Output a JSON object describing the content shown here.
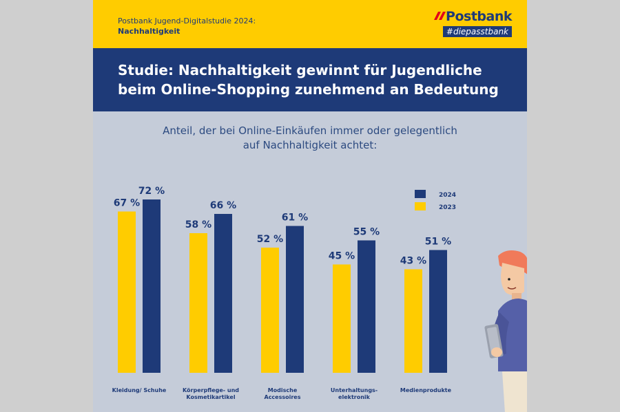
{
  "header": {
    "study_title": "Postbank Jugend-Digitalstudie 2024:",
    "study_topic": "Nachhaltigkeit",
    "brand_name": "Postbank",
    "tagline": "#diepasstbank"
  },
  "headline": {
    "line1": "Studie: Nachhaltigkeit gewinnt für Jugendliche",
    "line2": "beim Online-Shopping zunehmend an Bedeutung"
  },
  "subtitle": {
    "line1": "Anteil, der bei Online-Einkäufen immer oder gelegentlich",
    "line2": "auf Nachhaltigkeit achtet:"
  },
  "colors": {
    "brand_yellow": "#ffcc00",
    "brand_navy": "#1e3a78",
    "background": "#c5ccd9"
  },
  "chart_data": {
    "type": "bar",
    "categories": [
      [
        "Kleidung/ Schuhe"
      ],
      [
        "Körperpflege- und",
        "Kosmetikartikel"
      ],
      [
        "Modische",
        "Accessoires"
      ],
      [
        "Unterhaltungs-",
        "elektronik"
      ],
      [
        "Medienprodukte"
      ]
    ],
    "series": [
      {
        "name": "2023",
        "values": [
          67,
          58,
          52,
          45,
          43
        ],
        "color": "#ffcc00"
      },
      {
        "name": "2024",
        "values": [
          72,
          66,
          61,
          55,
          51
        ],
        "color": "#1e3a78"
      }
    ],
    "value_suffix": " %",
    "ylim": [
      0,
      100
    ],
    "grid": false,
    "legend_position": "top-right",
    "legend_order": [
      "2024",
      "2023"
    ]
  }
}
